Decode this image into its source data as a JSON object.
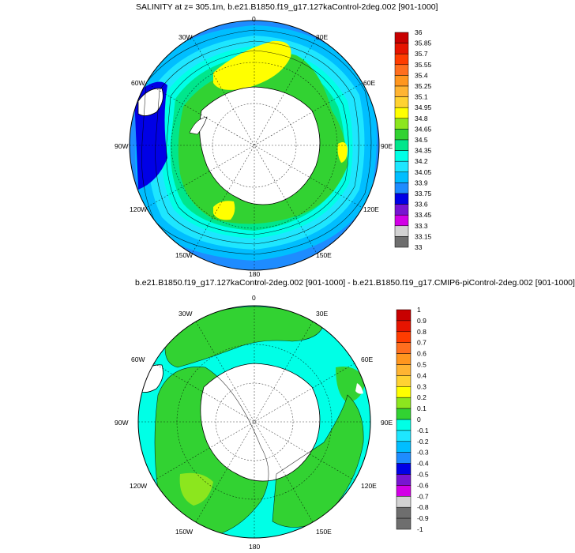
{
  "titles": {
    "top": "SALINITY at z= 305.1m, b.e21.B1850.f19_g17.127kaControl-2deg.002 [901-1000]",
    "bottom": "b.e21.B1850.f19_g17.127kaControl-2deg.002 [901-1000] - b.e21.B1850.f19_g17.CMIP6-piControl-2deg.002 [901-1000]"
  },
  "map_labels": {
    "top": {
      "n0": "0",
      "n30e": "30E",
      "n60e": "60E",
      "n90e": "90E",
      "n120e": "120E",
      "n150e": "150E",
      "n180": "180",
      "n150w": "150W",
      "n120w": "120W",
      "n90w": "90W",
      "n60w": "60W",
      "n30w": "30W"
    },
    "bottom": {
      "n0": "0",
      "n30e": "30E",
      "n60e": "60E",
      "n90e": "90E",
      "n120e": "120E",
      "n150e": "150E",
      "n180": "180",
      "n150w": "150W",
      "n120w": "120W",
      "n90w": "90W",
      "n60w": "60W",
      "n30w": "30W"
    }
  },
  "colorbars": {
    "top": {
      "labels": [
        "36",
        "35.85",
        "35.7",
        "35.55",
        "35.4",
        "35.25",
        "35.1",
        "34.95",
        "34.8",
        "34.65",
        "34.5",
        "34.35",
        "34.2",
        "34.05",
        "33.9",
        "33.75",
        "33.6",
        "33.45",
        "33.3",
        "33.15",
        "33"
      ],
      "colors": [
        "#c80000",
        "#e61400",
        "#ff3c00",
        "#ff6e1e",
        "#ff961e",
        "#ffb432",
        "#ffd232",
        "#ffff00",
        "#8ce61e",
        "#32d232",
        "#00e68c",
        "#00ffe6",
        "#1ee6ff",
        "#00beff",
        "#1e8cff",
        "#0000e6",
        "#7814d2",
        "#d200e6",
        "#d2d2d2",
        "#6e6e6e"
      ]
    },
    "bottom": {
      "labels": [
        "1",
        "0.9",
        "0.8",
        "0.7",
        "0.6",
        "0.5",
        "0.4",
        "0.3",
        "0.2",
        "0.1",
        "0",
        "-0.1",
        "-0.2",
        "-0.3",
        "-0.4",
        "-0.5",
        "-0.6",
        "-0.7",
        "-0.8",
        "-0.9",
        "-1"
      ],
      "colors": [
        "#c80000",
        "#e61400",
        "#ff3c00",
        "#ff6e1e",
        "#ff961e",
        "#ffb432",
        "#ffd232",
        "#ffff00",
        "#8ce61e",
        "#32d232",
        "#00ffe6",
        "#1ee6ff",
        "#00beff",
        "#1e8cff",
        "#0000e6",
        "#7814d2",
        "#d200e6",
        "#d2d2d2",
        "#6e6e6e",
        "#6e6e6e"
      ]
    }
  },
  "colors": {
    "ocean_top_base": "#1e8cff",
    "land": "#ffffff",
    "green": "#32d232",
    "yellow": "#ffff00",
    "cyan": "#00ffe6",
    "ocean_bottom_base": "#00ffe6"
  }
}
